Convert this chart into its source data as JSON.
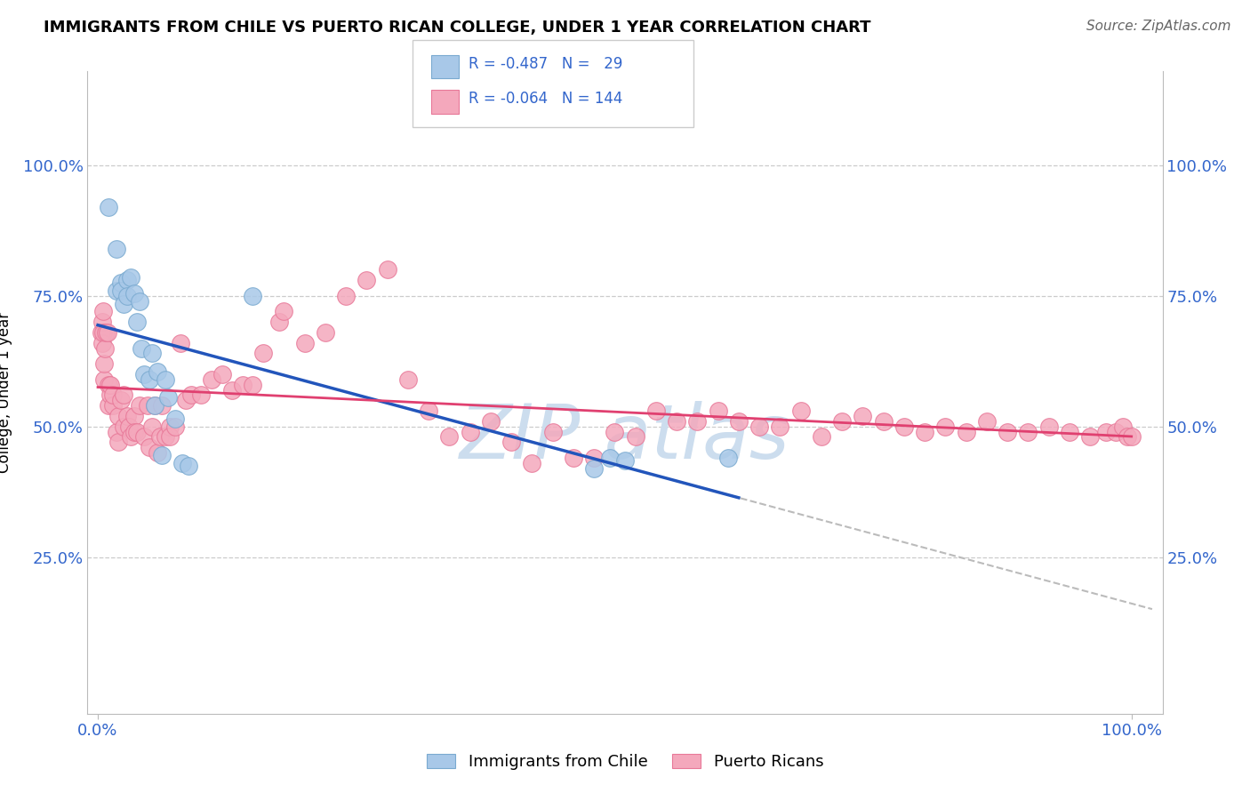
{
  "title": "IMMIGRANTS FROM CHILE VS PUERTO RICAN COLLEGE, UNDER 1 YEAR CORRELATION CHART",
  "source": "Source: ZipAtlas.com",
  "ylabel": "College, Under 1 year",
  "xlim": [
    -0.01,
    1.03
  ],
  "ylim": [
    -0.05,
    1.18
  ],
  "x_ticks": [
    0.0,
    1.0
  ],
  "x_tick_labels": [
    "0.0%",
    "100.0%"
  ],
  "y_ticks": [
    0.25,
    0.5,
    0.75,
    1.0
  ],
  "y_tick_labels": [
    "25.0%",
    "50.0%",
    "75.0%",
    "100.0%"
  ],
  "right_y_tick_labels": [
    "25.0%",
    "50.0%",
    "75.0%",
    "100.0%"
  ],
  "blue_color": "#A8C8E8",
  "pink_color": "#F4A8BC",
  "blue_edge_color": "#7AAAD0",
  "pink_edge_color": "#E87898",
  "blue_line_color": "#2255BB",
  "pink_line_color": "#E04070",
  "dashed_line_color": "#BBBBBB",
  "tick_label_color": "#3366CC",
  "watermark_color": "#CCDDEE",
  "blue_scatter_x": [
    0.01,
    0.018,
    0.018,
    0.022,
    0.022,
    0.025,
    0.028,
    0.028,
    0.032,
    0.035,
    0.038,
    0.04,
    0.042,
    0.045,
    0.05,
    0.052,
    0.055,
    0.058,
    0.062,
    0.065,
    0.068,
    0.075,
    0.082,
    0.088,
    0.15,
    0.48,
    0.495,
    0.51,
    0.61
  ],
  "blue_scatter_y": [
    0.92,
    0.84,
    0.76,
    0.775,
    0.76,
    0.735,
    0.78,
    0.75,
    0.785,
    0.755,
    0.7,
    0.74,
    0.65,
    0.6,
    0.59,
    0.64,
    0.54,
    0.605,
    0.445,
    0.59,
    0.555,
    0.515,
    0.43,
    0.425,
    0.75,
    0.42,
    0.44,
    0.435,
    0.44
  ],
  "pink_scatter_x": [
    0.003,
    0.004,
    0.004,
    0.005,
    0.005,
    0.006,
    0.006,
    0.007,
    0.008,
    0.009,
    0.01,
    0.01,
    0.012,
    0.012,
    0.015,
    0.015,
    0.018,
    0.02,
    0.02,
    0.022,
    0.025,
    0.025,
    0.028,
    0.03,
    0.032,
    0.035,
    0.035,
    0.038,
    0.04,
    0.045,
    0.048,
    0.05,
    0.052,
    0.055,
    0.058,
    0.06,
    0.062,
    0.065,
    0.07,
    0.07,
    0.075,
    0.08,
    0.085,
    0.09,
    0.1,
    0.11,
    0.12,
    0.13,
    0.14,
    0.15,
    0.16,
    0.175,
    0.18,
    0.2,
    0.22,
    0.24,
    0.26,
    0.28,
    0.3,
    0.32,
    0.34,
    0.36,
    0.38,
    0.4,
    0.42,
    0.44,
    0.46,
    0.48,
    0.5,
    0.52,
    0.54,
    0.56,
    0.58,
    0.6,
    0.62,
    0.64,
    0.66,
    0.68,
    0.7,
    0.72,
    0.74,
    0.76,
    0.78,
    0.8,
    0.82,
    0.84,
    0.86,
    0.88,
    0.9,
    0.92,
    0.94,
    0.96,
    0.975,
    0.985,
    0.992,
    0.996,
    1.0
  ],
  "pink_scatter_y": [
    0.68,
    0.7,
    0.66,
    0.72,
    0.68,
    0.59,
    0.62,
    0.65,
    0.68,
    0.68,
    0.58,
    0.54,
    0.56,
    0.58,
    0.54,
    0.56,
    0.49,
    0.52,
    0.47,
    0.55,
    0.5,
    0.56,
    0.52,
    0.5,
    0.48,
    0.52,
    0.49,
    0.49,
    0.54,
    0.48,
    0.54,
    0.46,
    0.5,
    0.54,
    0.45,
    0.48,
    0.54,
    0.48,
    0.5,
    0.48,
    0.5,
    0.66,
    0.55,
    0.56,
    0.56,
    0.59,
    0.6,
    0.57,
    0.58,
    0.58,
    0.64,
    0.7,
    0.72,
    0.66,
    0.68,
    0.75,
    0.78,
    0.8,
    0.59,
    0.53,
    0.48,
    0.49,
    0.51,
    0.47,
    0.43,
    0.49,
    0.44,
    0.44,
    0.49,
    0.48,
    0.53,
    0.51,
    0.51,
    0.53,
    0.51,
    0.5,
    0.5,
    0.53,
    0.48,
    0.51,
    0.52,
    0.51,
    0.5,
    0.49,
    0.5,
    0.49,
    0.51,
    0.49,
    0.49,
    0.5,
    0.49,
    0.48,
    0.49,
    0.49,
    0.5,
    0.48,
    0.48
  ],
  "blue_line_x0": 0.0,
  "blue_line_x1": 0.62,
  "pink_line_x0": 0.0,
  "pink_line_x1": 1.0,
  "dash_line_x0": 0.42,
  "dash_line_x1": 1.02
}
